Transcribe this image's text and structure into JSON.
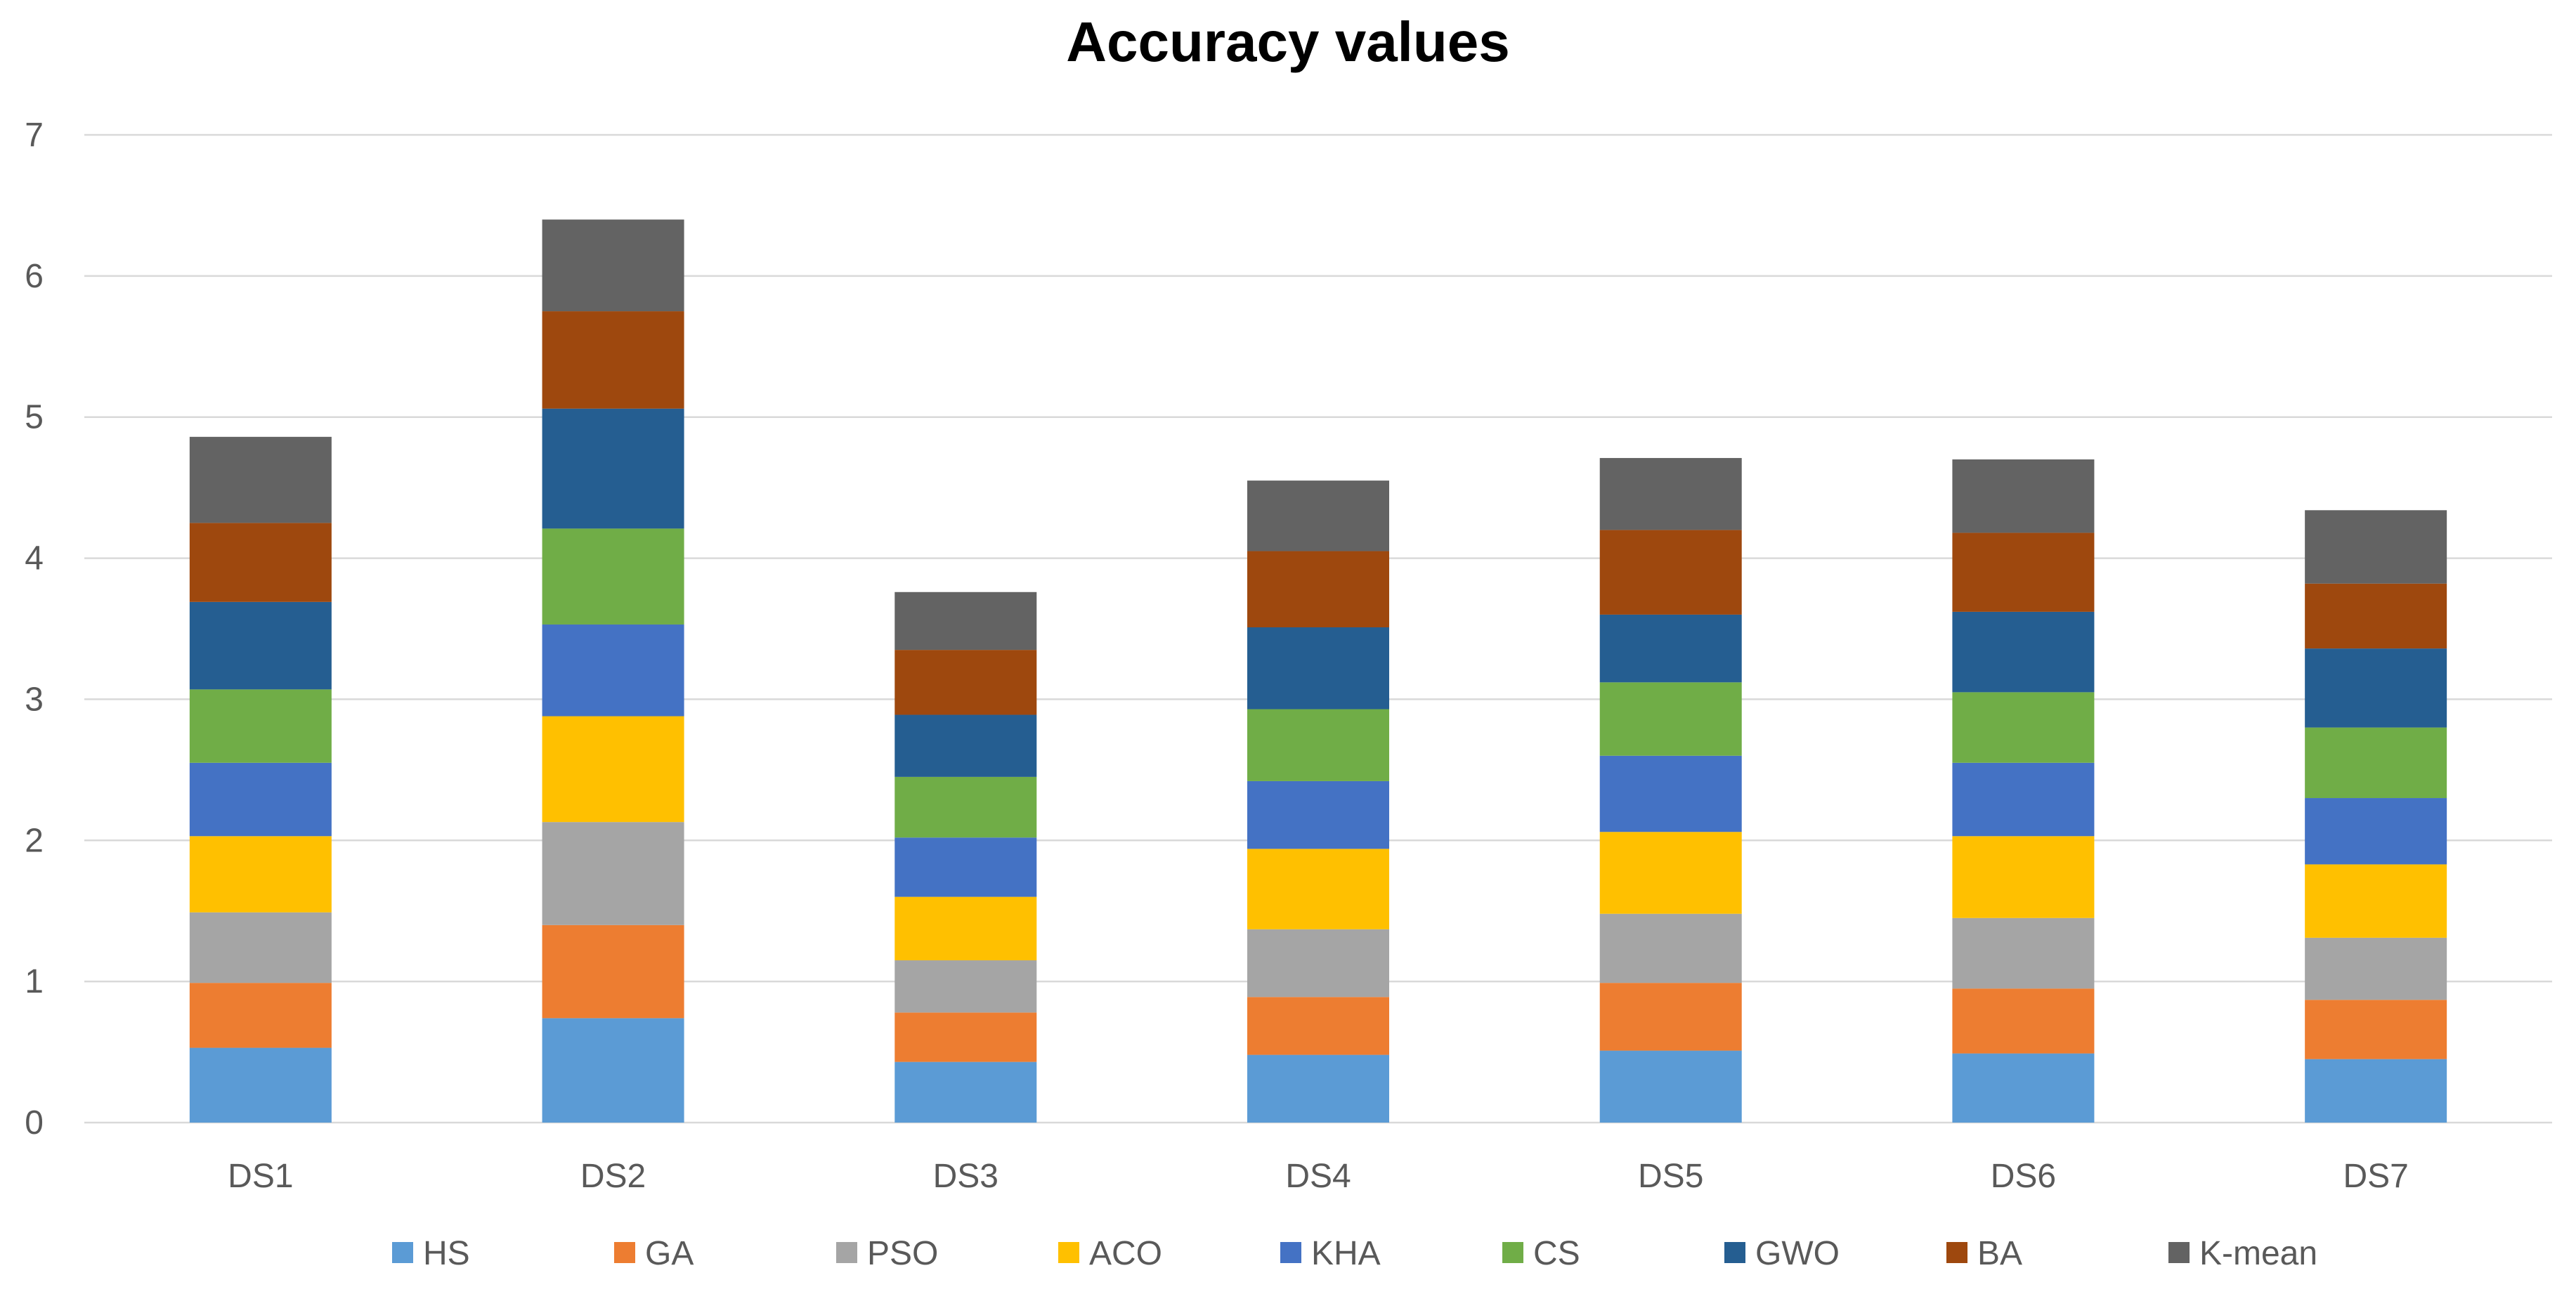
{
  "chart_data": {
    "type": "bar",
    "stacked": true,
    "title": "Accuracy values",
    "xlabel": "",
    "ylabel": "",
    "ylim": [
      0,
      7
    ],
    "yticks": [
      0,
      1,
      2,
      3,
      4,
      5,
      6,
      7
    ],
    "grid": true,
    "legend_position": "bottom",
    "categories": [
      "DS1",
      "DS2",
      "DS3",
      "DS4",
      "DS5",
      "DS6",
      "DS7"
    ],
    "series": [
      {
        "name": "HS",
        "color": "#5B9BD5",
        "values": [
          0.53,
          0.74,
          0.43,
          0.48,
          0.51,
          0.49,
          0.45
        ]
      },
      {
        "name": "GA",
        "color": "#ED7D31",
        "values": [
          0.46,
          0.66,
          0.35,
          0.41,
          0.48,
          0.46,
          0.42
        ]
      },
      {
        "name": "PSO",
        "color": "#A5A5A5",
        "values": [
          0.5,
          0.73,
          0.37,
          0.48,
          0.49,
          0.5,
          0.44
        ]
      },
      {
        "name": "ACO",
        "color": "#FFC000",
        "values": [
          0.54,
          0.75,
          0.45,
          0.57,
          0.58,
          0.58,
          0.52
        ]
      },
      {
        "name": "KHA",
        "color": "#4472C4",
        "values": [
          0.52,
          0.65,
          0.42,
          0.48,
          0.54,
          0.52,
          0.47
        ]
      },
      {
        "name": "CS",
        "color": "#70AD47",
        "values": [
          0.52,
          0.68,
          0.43,
          0.51,
          0.52,
          0.5,
          0.5
        ]
      },
      {
        "name": "GWO",
        "color": "#255E91",
        "values": [
          0.62,
          0.85,
          0.44,
          0.58,
          0.48,
          0.57,
          0.56
        ]
      },
      {
        "name": "BA",
        "color": "#9E480E",
        "values": [
          0.56,
          0.69,
          0.46,
          0.54,
          0.6,
          0.56,
          0.46
        ]
      },
      {
        "name": "K-mean",
        "color": "#636363",
        "values": [
          0.61,
          0.65,
          0.41,
          0.5,
          0.51,
          0.52,
          0.52
        ]
      }
    ]
  }
}
